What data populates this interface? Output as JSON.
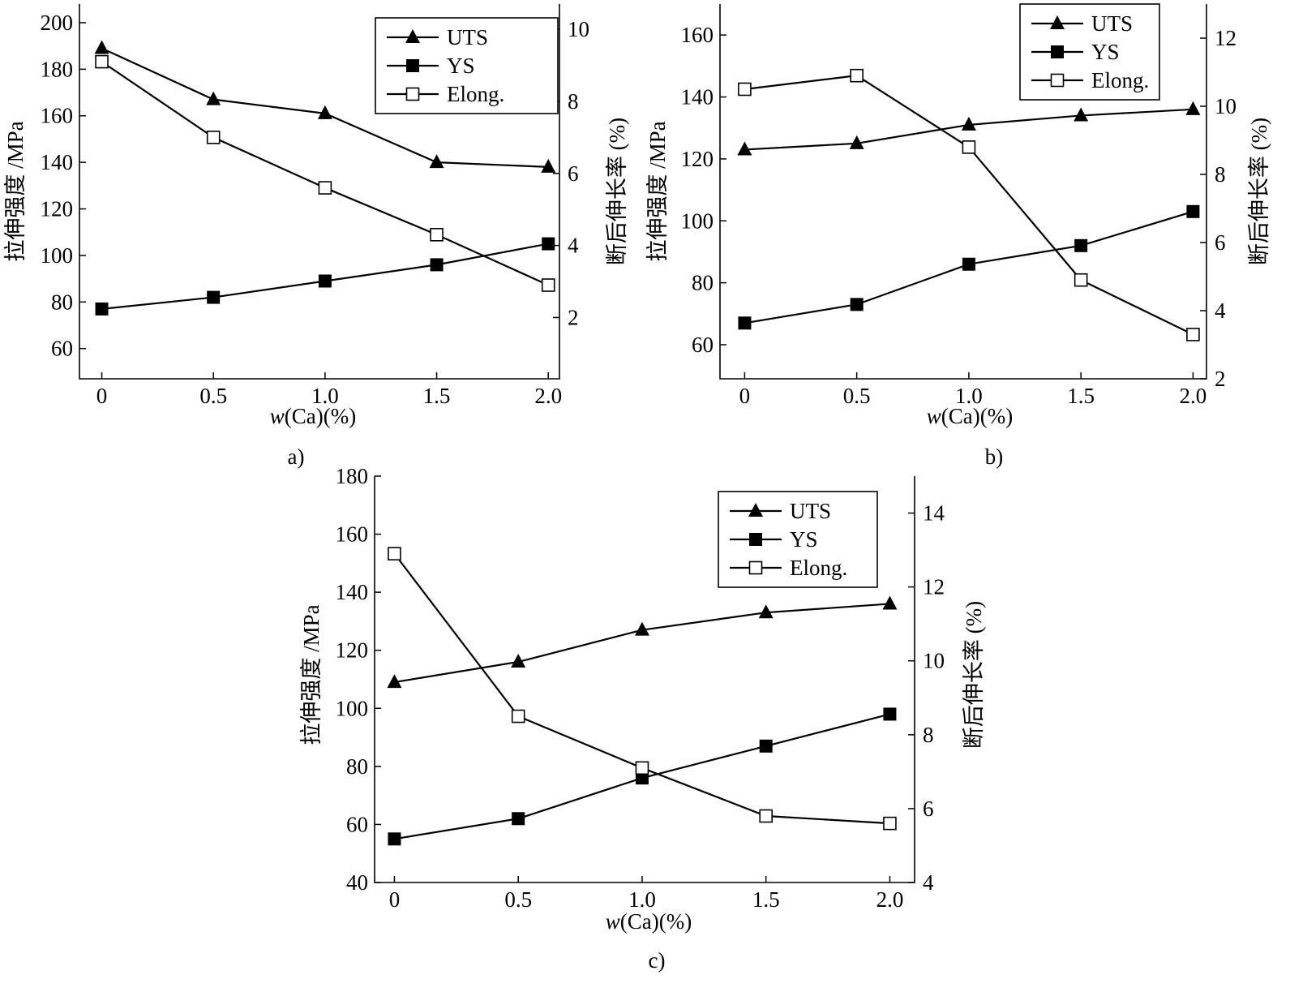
{
  "figure": {
    "captions": [
      "a)",
      "b)",
      "c)"
    ]
  },
  "chart_data": [
    {
      "id": "a",
      "type": "line",
      "caption": "a)",
      "xlabel_italic": "w",
      "xlabel_rest": "(Ca)(%)",
      "ylabel_left": "拉伸强度 /MPa",
      "ylabel_right": "断后伸长率 (%)",
      "x": [
        0,
        0.5,
        1.0,
        1.5,
        2.0
      ],
      "xticks": [
        "0",
        "0.5",
        "1.0",
        "1.5",
        "2.0"
      ],
      "xlim": [
        -0.1,
        2.05
      ],
      "ylim_left": [
        47,
        208
      ],
      "yticks_left": [
        60,
        80,
        100,
        120,
        140,
        160,
        180,
        200
      ],
      "ylim_right": [
        0.3,
        10.7
      ],
      "yticks_right": [
        2,
        4,
        6,
        8,
        10
      ],
      "legend": [
        "UTS",
        "YS",
        "Elong."
      ],
      "legend_position": "top-right",
      "series": [
        {
          "name": "UTS",
          "marker": "triangle",
          "axis": "left",
          "values": [
            189,
            167,
            161,
            140,
            138
          ]
        },
        {
          "name": "YS",
          "marker": "square-filled",
          "axis": "left",
          "values": [
            77,
            82,
            89,
            96,
            105
          ]
        },
        {
          "name": "Elong.",
          "marker": "square-open",
          "axis": "right",
          "values": [
            9.1,
            7.0,
            5.6,
            4.3,
            2.9
          ]
        }
      ]
    },
    {
      "id": "b",
      "type": "line",
      "caption": "b)",
      "xlabel_italic": "w",
      "xlabel_rest": "(Ca)(%)",
      "ylabel_left": "拉伸强度 /MPa",
      "ylabel_right": "断后伸长率 (%)",
      "x": [
        0,
        0.5,
        1.0,
        1.5,
        2.0
      ],
      "xticks": [
        "0",
        "0.5",
        "1.0",
        "1.5",
        "2.0"
      ],
      "xlim": [
        -0.11,
        2.06
      ],
      "ylim_left": [
        49,
        170
      ],
      "yticks_left": [
        60,
        80,
        100,
        120,
        140,
        160
      ],
      "ylim_right": [
        2,
        13
      ],
      "yticks_right": [
        2,
        4,
        6,
        8,
        10,
        12
      ],
      "legend": [
        "UTS",
        "YS",
        "Elong."
      ],
      "legend_position": "top-right",
      "series": [
        {
          "name": "UTS",
          "marker": "triangle",
          "axis": "left",
          "values": [
            123,
            125,
            131,
            134,
            136
          ]
        },
        {
          "name": "YS",
          "marker": "square-filled",
          "axis": "left",
          "values": [
            67,
            73,
            86,
            92,
            103
          ]
        },
        {
          "name": "Elong.",
          "marker": "square-open",
          "axis": "right",
          "values": [
            10.5,
            10.9,
            8.8,
            4.9,
            3.3
          ]
        }
      ]
    },
    {
      "id": "c",
      "type": "line",
      "caption": "c)",
      "xlabel_italic": "w",
      "xlabel_rest": "(Ca)(%)",
      "ylabel_left": "拉伸强度 /MPa",
      "ylabel_right": "断后伸长率 (%)",
      "x": [
        0,
        0.5,
        1.0,
        1.5,
        2.0
      ],
      "xticks": [
        "0",
        "0.5",
        "1.0",
        "1.5",
        "2.0"
      ],
      "xlim": [
        -0.08,
        2.1
      ],
      "ylim_left": [
        40,
        180
      ],
      "yticks_left": [
        40,
        60,
        80,
        100,
        120,
        140,
        160,
        180
      ],
      "ylim_right": [
        4,
        15
      ],
      "yticks_right": [
        4,
        6,
        8,
        10,
        12,
        14
      ],
      "legend": [
        "UTS",
        "YS",
        "Elong."
      ],
      "legend_position": "top-right",
      "series": [
        {
          "name": "UTS",
          "marker": "triangle",
          "axis": "left",
          "values": [
            109,
            116,
            127,
            133,
            136
          ]
        },
        {
          "name": "YS",
          "marker": "square-filled",
          "axis": "left",
          "values": [
            55,
            62,
            76,
            87,
            98
          ]
        },
        {
          "name": "Elong.",
          "marker": "square-open",
          "axis": "right",
          "values": [
            12.9,
            8.5,
            7.1,
            5.8,
            5.6
          ]
        }
      ]
    }
  ]
}
